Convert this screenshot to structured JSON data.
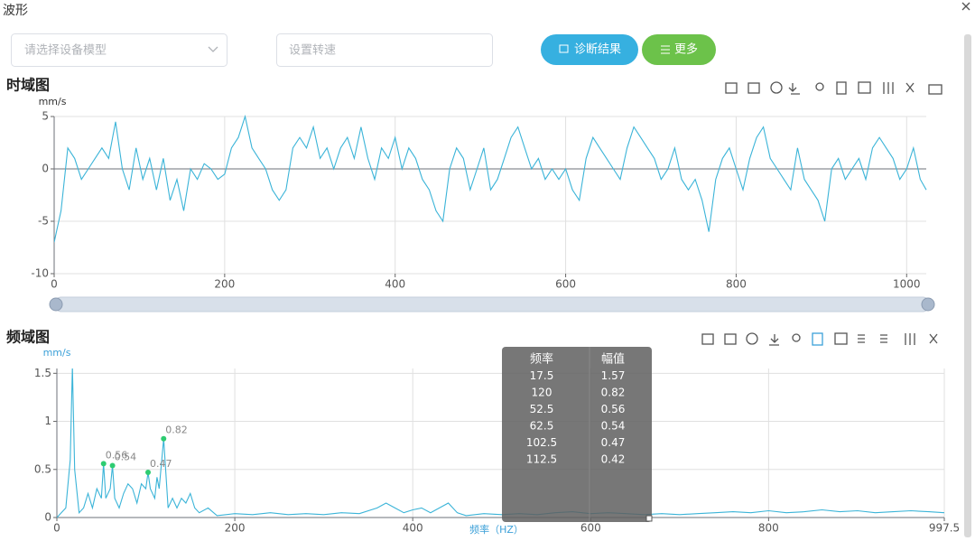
{
  "header": {
    "title": "波形"
  },
  "form": {
    "model_placeholder": "请选择设备模型",
    "speed_placeholder": "设置转速",
    "diagnose_button": "诊断结果",
    "more_button": "更多"
  },
  "panels": {
    "time_title": "时域图",
    "freq_title": "频域图"
  },
  "chart_data": [
    {
      "type": "line",
      "y_label": "mm/s",
      "color": "#3bb4d8",
      "grid": true,
      "xlim": [
        0,
        1023
      ],
      "ylim": [
        -10,
        5
      ],
      "xticks": [
        0,
        200,
        400,
        600,
        800,
        1000
      ],
      "yticks": [
        -10,
        -5,
        0,
        5
      ],
      "x": [
        0,
        8,
        16,
        24,
        32,
        40,
        48,
        56,
        64,
        72,
        80,
        88,
        96,
        104,
        112,
        120,
        128,
        136,
        144,
        152,
        160,
        168,
        176,
        184,
        192,
        200,
        208,
        216,
        224,
        232,
        240,
        248,
        256,
        264,
        272,
        280,
        288,
        296,
        304,
        312,
        320,
        328,
        336,
        344,
        352,
        360,
        368,
        376,
        384,
        392,
        400,
        408,
        416,
        424,
        432,
        440,
        448,
        456,
        464,
        472,
        480,
        488,
        496,
        504,
        512,
        520,
        528,
        536,
        544,
        552,
        560,
        568,
        576,
        584,
        592,
        600,
        608,
        616,
        624,
        632,
        640,
        648,
        656,
        664,
        672,
        680,
        688,
        696,
        704,
        712,
        720,
        728,
        736,
        744,
        752,
        760,
        768,
        776,
        784,
        792,
        800,
        808,
        816,
        824,
        832,
        840,
        848,
        856,
        864,
        872,
        880,
        888,
        896,
        904,
        912,
        920,
        928,
        936,
        944,
        952,
        960,
        968,
        976,
        984,
        992,
        1000,
        1008,
        1016,
        1023
      ],
      "values": [
        -7,
        -4,
        2,
        1,
        -1,
        0,
        1,
        2,
        1,
        4.5,
        0,
        -2,
        2,
        -1,
        1,
        -2,
        1,
        -3,
        -1,
        -4,
        0,
        -1,
        0.5,
        0,
        -1,
        -0.5,
        2,
        3,
        5,
        2,
        1,
        0,
        -2,
        -3,
        -2,
        2,
        3,
        2,
        4,
        1,
        2,
        0,
        2,
        3,
        1,
        4,
        1,
        -1,
        2,
        1,
        3,
        0,
        2,
        1,
        -1,
        -2,
        -4,
        -5,
        0,
        2,
        1,
        -2,
        0,
        2,
        -2,
        -1,
        1,
        3,
        4,
        2,
        0,
        1,
        -1,
        0,
        -1,
        0,
        -2,
        -3,
        1,
        3,
        2,
        1,
        0,
        -1,
        2,
        4,
        3,
        2,
        1,
        -1,
        0,
        2,
        -1,
        -2,
        -1,
        -3,
        -6,
        -1,
        1,
        2,
        0,
        -2,
        1,
        3,
        4,
        1,
        0,
        -1,
        -2,
        2,
        -1,
        -2,
        -3,
        -5,
        0,
        1,
        -1,
        0,
        1,
        -1,
        2,
        3,
        2,
        1,
        -1,
        0,
        2,
        -1,
        -2
      ]
    },
    {
      "type": "line",
      "y_label": "mm/s",
      "x_label": "频率（HZ）",
      "color": "#3bb4d8",
      "grid": true,
      "xlim": [
        0,
        997.5
      ],
      "ylim": [
        0,
        1.55
      ],
      "xticks": [
        0,
        200,
        400,
        600,
        800,
        997.5
      ],
      "yticks": [
        0,
        0.5,
        1,
        1.5
      ],
      "x": [
        0,
        5,
        10,
        15,
        17.5,
        20,
        25,
        30,
        35,
        40,
        45,
        50,
        52.5,
        55,
        60,
        62.5,
        65,
        70,
        75,
        80,
        85,
        90,
        95,
        100,
        102.5,
        105,
        110,
        112.5,
        115,
        120,
        125,
        130,
        135,
        140,
        145,
        150,
        155,
        160,
        170,
        180,
        200,
        220,
        240,
        260,
        280,
        300,
        320,
        340,
        360,
        370,
        380,
        390,
        400,
        410,
        420,
        430,
        440,
        450,
        460,
        480,
        500,
        520,
        540,
        560,
        580,
        600,
        620,
        640,
        660,
        680,
        700,
        720,
        740,
        760,
        780,
        800,
        820,
        840,
        860,
        880,
        900,
        920,
        940,
        960,
        980,
        997.5
      ],
      "values": [
        0,
        0.05,
        0.1,
        0.6,
        1.57,
        0.5,
        0.05,
        0.1,
        0.25,
        0.1,
        0.3,
        0.2,
        0.56,
        0.2,
        0.3,
        0.54,
        0.2,
        0.1,
        0.25,
        0.35,
        0.3,
        0.15,
        0.35,
        0.3,
        0.47,
        0.3,
        0.2,
        0.42,
        0.3,
        0.82,
        0.1,
        0.2,
        0.1,
        0.2,
        0.15,
        0.25,
        0.1,
        0.05,
        0.1,
        0.02,
        0.04,
        0.03,
        0.05,
        0.03,
        0.04,
        0.03,
        0.05,
        0.04,
        0.1,
        0.15,
        0.1,
        0.05,
        0.08,
        0.1,
        0.05,
        0.1,
        0.15,
        0.05,
        0.02,
        0.04,
        0.03,
        0.04,
        0.03,
        0.05,
        0.06,
        0.04,
        0.05,
        0.04,
        0.03,
        0.04,
        0.03,
        0.04,
        0.05,
        0.06,
        0.05,
        0.07,
        0.05,
        0.06,
        0.08,
        0.06,
        0.07,
        0.05,
        0.06,
        0.07,
        0.06,
        0.05
      ],
      "markers": {
        "x": [
          52.5,
          62.5,
          102.5,
          120
        ],
        "values": [
          0.56,
          0.54,
          0.47,
          0.82
        ],
        "color": "#2ecc71"
      }
    }
  ],
  "tooltip": {
    "headers": [
      "频率",
      "幅值"
    ],
    "rows": [
      [
        17.5,
        1.57
      ],
      [
        120,
        0.82
      ],
      [
        52.5,
        0.56
      ],
      [
        62.5,
        0.54
      ],
      [
        102.5,
        0.47
      ],
      [
        112.5,
        0.42
      ]
    ]
  }
}
